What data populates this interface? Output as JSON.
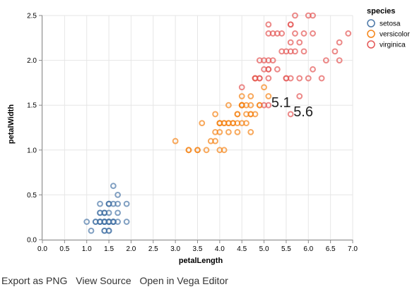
{
  "chart_data": {
    "type": "scatter",
    "xlabel": "petalLength",
    "ylabel": "petalWidth",
    "xlim": [
      0,
      7
    ],
    "ylim": [
      0,
      2.5
    ],
    "x_ticks": [
      "0.0",
      "0.5",
      "1.0",
      "1.5",
      "2.0",
      "2.5",
      "3.0",
      "3.5",
      "4.0",
      "4.5",
      "5.0",
      "5.5",
      "6.0",
      "6.5",
      "7.0"
    ],
    "y_ticks": [
      "0.0",
      "0.5",
      "1.0",
      "1.5",
      "2.0",
      "2.5"
    ],
    "grid": true,
    "legend": {
      "title": "species",
      "placement": "top-right"
    },
    "series": [
      {
        "name": "setosa",
        "color": "#4c78a8",
        "points": [
          [
            1.4,
            0.2
          ],
          [
            1.4,
            0.2
          ],
          [
            1.3,
            0.2
          ],
          [
            1.5,
            0.2
          ],
          [
            1.4,
            0.2
          ],
          [
            1.7,
            0.4
          ],
          [
            1.4,
            0.3
          ],
          [
            1.5,
            0.2
          ],
          [
            1.4,
            0.2
          ],
          [
            1.5,
            0.1
          ],
          [
            1.5,
            0.2
          ],
          [
            1.6,
            0.2
          ],
          [
            1.4,
            0.1
          ],
          [
            1.1,
            0.1
          ],
          [
            1.2,
            0.2
          ],
          [
            1.5,
            0.4
          ],
          [
            1.3,
            0.4
          ],
          [
            1.4,
            0.3
          ],
          [
            1.7,
            0.3
          ],
          [
            1.5,
            0.3
          ],
          [
            1.7,
            0.2
          ],
          [
            1.5,
            0.4
          ],
          [
            1.0,
            0.2
          ],
          [
            1.7,
            0.5
          ],
          [
            1.9,
            0.2
          ],
          [
            1.6,
            0.2
          ],
          [
            1.6,
            0.4
          ],
          [
            1.5,
            0.2
          ],
          [
            1.4,
            0.2
          ],
          [
            1.6,
            0.2
          ],
          [
            1.6,
            0.2
          ],
          [
            1.5,
            0.4
          ],
          [
            1.5,
            0.1
          ],
          [
            1.4,
            0.2
          ],
          [
            1.5,
            0.2
          ],
          [
            1.2,
            0.2
          ],
          [
            1.3,
            0.2
          ],
          [
            1.4,
            0.1
          ],
          [
            1.3,
            0.2
          ],
          [
            1.5,
            0.2
          ],
          [
            1.3,
            0.3
          ],
          [
            1.3,
            0.3
          ],
          [
            1.3,
            0.2
          ],
          [
            1.6,
            0.6
          ],
          [
            1.9,
            0.4
          ],
          [
            1.4,
            0.3
          ],
          [
            1.6,
            0.2
          ],
          [
            1.4,
            0.2
          ],
          [
            1.5,
            0.2
          ],
          [
            1.4,
            0.2
          ]
        ]
      },
      {
        "name": "versicolor",
        "color": "#f58518",
        "points": [
          [
            4.7,
            1.4
          ],
          [
            4.5,
            1.5
          ],
          [
            4.9,
            1.5
          ],
          [
            4.0,
            1.3
          ],
          [
            4.6,
            1.5
          ],
          [
            4.5,
            1.3
          ],
          [
            4.7,
            1.6
          ],
          [
            3.3,
            1.0
          ],
          [
            4.6,
            1.3
          ],
          [
            3.9,
            1.4
          ],
          [
            3.5,
            1.0
          ],
          [
            4.2,
            1.5
          ],
          [
            4.0,
            1.0
          ],
          [
            4.7,
            1.4
          ],
          [
            3.6,
            1.3
          ],
          [
            4.4,
            1.4
          ],
          [
            4.5,
            1.5
          ],
          [
            4.1,
            1.0
          ],
          [
            4.5,
            1.5
          ],
          [
            3.9,
            1.1
          ],
          [
            4.8,
            1.8
          ],
          [
            4.0,
            1.3
          ],
          [
            4.9,
            1.5
          ],
          [
            4.7,
            1.2
          ],
          [
            4.3,
            1.3
          ],
          [
            4.4,
            1.4
          ],
          [
            4.8,
            1.4
          ],
          [
            5.0,
            1.7
          ],
          [
            4.5,
            1.5
          ],
          [
            3.5,
            1.0
          ],
          [
            3.8,
            1.1
          ],
          [
            3.7,
            1.0
          ],
          [
            3.9,
            1.2
          ],
          [
            5.1,
            1.6
          ],
          [
            4.5,
            1.5
          ],
          [
            4.5,
            1.6
          ],
          [
            4.7,
            1.5
          ],
          [
            4.4,
            1.3
          ],
          [
            4.1,
            1.3
          ],
          [
            4.0,
            1.3
          ],
          [
            4.4,
            1.2
          ],
          [
            4.6,
            1.4
          ],
          [
            4.0,
            1.2
          ],
          [
            3.3,
            1.0
          ],
          [
            4.2,
            1.3
          ],
          [
            4.2,
            1.2
          ],
          [
            4.2,
            1.3
          ],
          [
            4.3,
            1.3
          ],
          [
            3.0,
            1.1
          ],
          [
            4.1,
            1.3
          ]
        ]
      },
      {
        "name": "virginica",
        "color": "#e45756",
        "points": [
          [
            6.0,
            2.5
          ],
          [
            5.1,
            1.9
          ],
          [
            5.9,
            2.1
          ],
          [
            5.6,
            1.8
          ],
          [
            5.8,
            2.2
          ],
          [
            6.6,
            2.1
          ],
          [
            4.5,
            1.7
          ],
          [
            6.3,
            1.8
          ],
          [
            5.8,
            1.8
          ],
          [
            6.1,
            2.5
          ],
          [
            5.1,
            2.0
          ],
          [
            5.3,
            1.9
          ],
          [
            5.5,
            2.1
          ],
          [
            5.0,
            2.0
          ],
          [
            5.1,
            2.4
          ],
          [
            5.3,
            2.3
          ],
          [
            5.5,
            1.8
          ],
          [
            6.7,
            2.2
          ],
          [
            6.9,
            2.3
          ],
          [
            5.0,
            1.5
          ],
          [
            5.7,
            2.3
          ],
          [
            4.9,
            2.0
          ],
          [
            6.7,
            2.0
          ],
          [
            4.9,
            1.8
          ],
          [
            5.7,
            2.1
          ],
          [
            6.0,
            1.8
          ],
          [
            4.8,
            1.8
          ],
          [
            4.9,
            1.8
          ],
          [
            5.6,
            2.1
          ],
          [
            5.8,
            1.6
          ],
          [
            6.1,
            1.9
          ],
          [
            6.4,
            2.0
          ],
          [
            5.6,
            2.2
          ],
          [
            5.1,
            1.5
          ],
          [
            5.6,
            1.4
          ],
          [
            6.1,
            2.3
          ],
          [
            5.6,
            2.4
          ],
          [
            5.5,
            1.8
          ],
          [
            4.8,
            1.8
          ],
          [
            5.4,
            2.1
          ],
          [
            5.6,
            2.4
          ],
          [
            5.1,
            2.3
          ],
          [
            5.1,
            1.9
          ],
          [
            5.9,
            2.3
          ],
          [
            5.7,
            2.5
          ],
          [
            5.2,
            2.3
          ],
          [
            5.0,
            1.9
          ],
          [
            5.2,
            2.0
          ],
          [
            5.4,
            2.3
          ],
          [
            5.1,
            1.8
          ]
        ]
      }
    ],
    "annotations": [
      {
        "text": "5.1",
        "x": 5.1,
        "y": 1.5
      },
      {
        "text": "5.6",
        "x": 5.6,
        "y": 1.4
      }
    ]
  },
  "links": {
    "export_png": "Export as PNG",
    "view_source": "View Source",
    "open_editor": "Open in Vega Editor"
  }
}
